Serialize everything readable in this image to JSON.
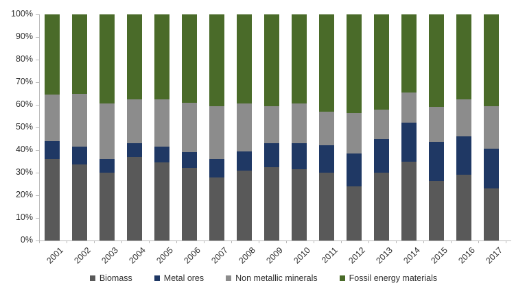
{
  "chart_data": {
    "type": "bar",
    "variant": "stacked-100-percent",
    "title": "",
    "xlabel": "",
    "ylabel": "",
    "ylim": [
      0,
      100
    ],
    "grid": false,
    "legend_position": "bottom",
    "y_ticks": [
      "0%",
      "10%",
      "20%",
      "30%",
      "40%",
      "50%",
      "60%",
      "70%",
      "80%",
      "90%",
      "100%"
    ],
    "categories": [
      "2001",
      "2002",
      "2003",
      "2004",
      "2005",
      "2006",
      "2007",
      "2008",
      "2009",
      "2010",
      "2011",
      "2012",
      "2013",
      "2014",
      "2015",
      "2016",
      "2017"
    ],
    "series": [
      {
        "name": "Biomass",
        "color": "#595959",
        "values": [
          36,
          33.5,
          30,
          37,
          34.5,
          32,
          28,
          31,
          32.5,
          31.5,
          30,
          24,
          30,
          35,
          26.5,
          29,
          23
        ]
      },
      {
        "name": "Metal ores",
        "color": "#1f3864",
        "values": [
          8,
          8,
          6,
          6,
          7,
          7,
          8,
          8.5,
          10.5,
          11.5,
          12,
          14.5,
          15,
          17,
          17,
          17,
          17.5
        ]
      },
      {
        "name": "Non metallic minerals",
        "color": "#8c8c8c",
        "values": [
          20.5,
          23.5,
          24.5,
          19.5,
          21,
          22,
          23.5,
          21,
          16.5,
          17.5,
          15,
          18,
          13,
          13.5,
          15.5,
          16.5,
          19
        ]
      },
      {
        "name": "Fossil energy materials",
        "color": "#4a6b29",
        "values": [
          35.5,
          35,
          39.5,
          37.5,
          37.5,
          39,
          40.5,
          39.5,
          40.5,
          39.5,
          43,
          43.5,
          42,
          34.5,
          41,
          37.5,
          40.5
        ]
      }
    ],
    "colors": {
      "axis_line": "#b9b9b9",
      "tick_text": "#303030"
    }
  }
}
